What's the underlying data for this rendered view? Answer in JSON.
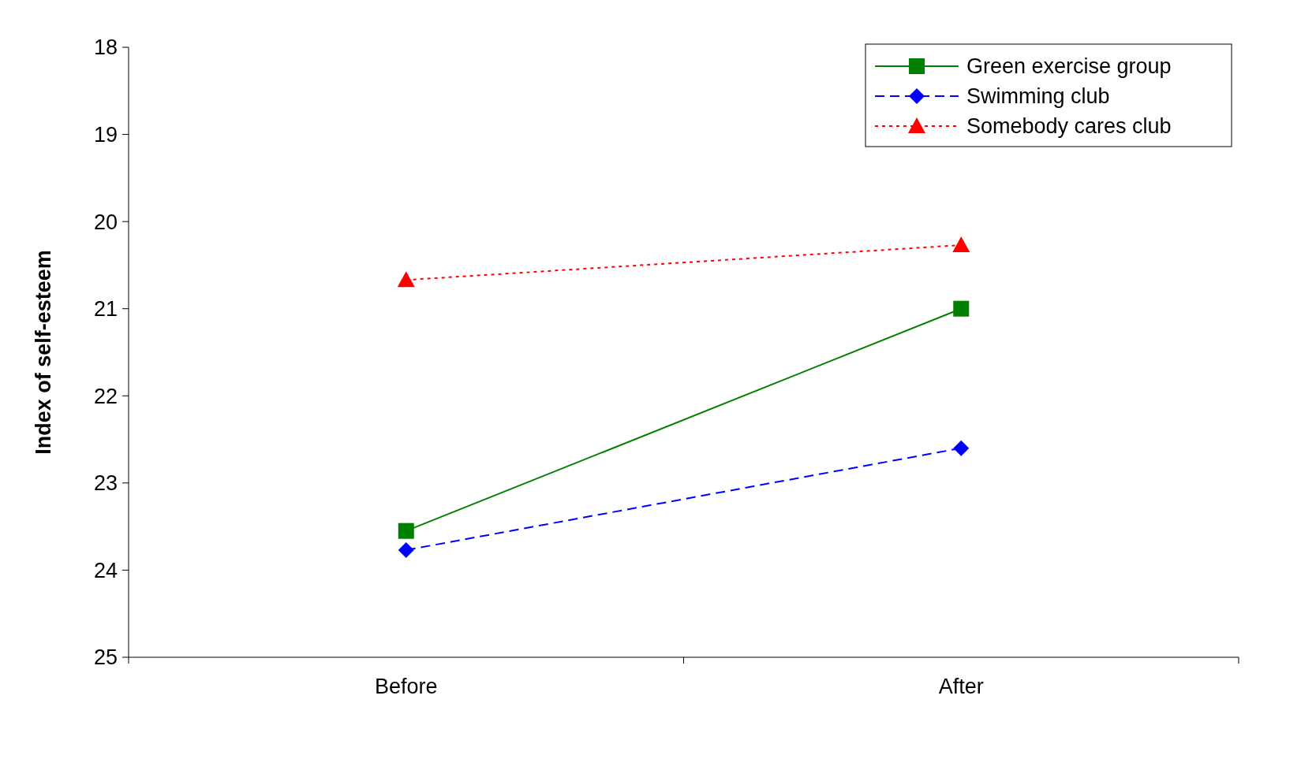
{
  "chart_data": {
    "type": "line",
    "ylabel": "Index of self-esteem",
    "categories": [
      "Before",
      "After"
    ],
    "ylim": [
      25,
      18
    ],
    "yticks": [
      18,
      19,
      20,
      21,
      22,
      23,
      24,
      25
    ],
    "grid": false,
    "legend": "top right",
    "series": [
      {
        "name": "Green exercise group",
        "color": "#008000",
        "values": [
          23.55,
          21.0
        ],
        "marker": "square",
        "line_style": "solid"
      },
      {
        "name": "Swimming club",
        "color": "#0000ff",
        "values": [
          23.77,
          22.6
        ],
        "marker": "diamond",
        "line_style": "dashed"
      },
      {
        "name": "Somebody cares club",
        "color": "#ff0000",
        "values": [
          20.67,
          20.27
        ],
        "marker": "triangle",
        "line_style": "dotted"
      }
    ]
  }
}
